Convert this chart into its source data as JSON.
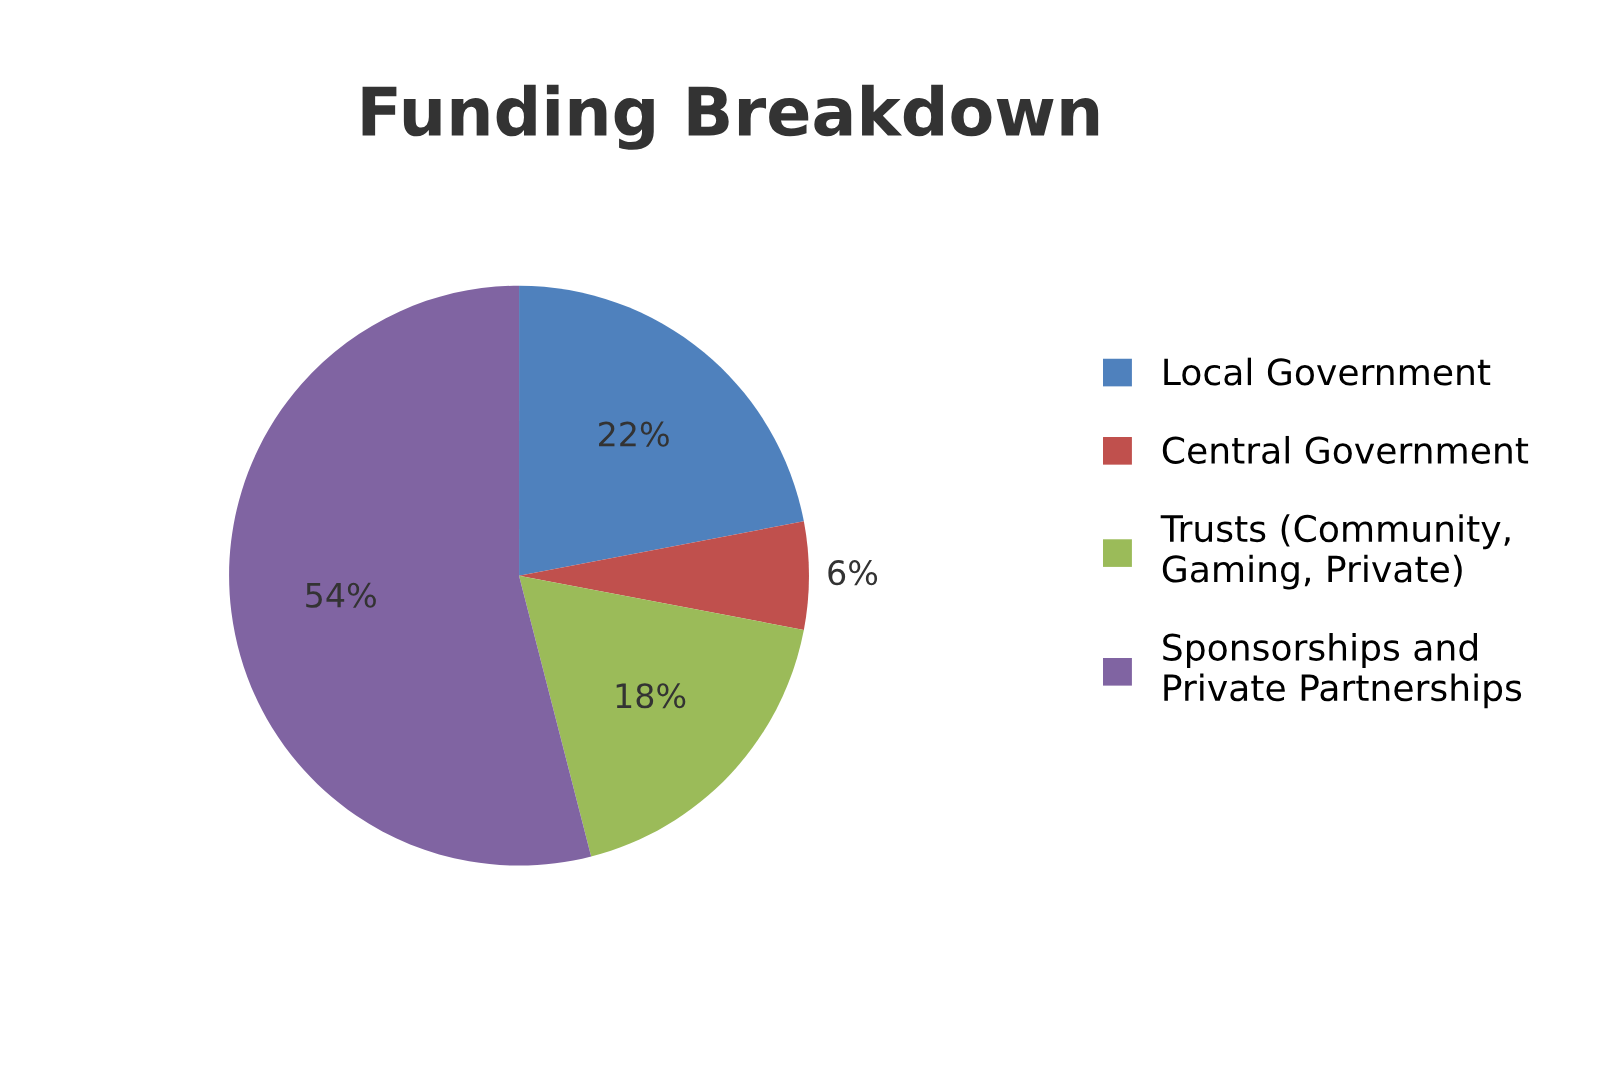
{
  "chart_data": {
    "type": "pie",
    "title": "Funding Breakdown",
    "categories": [
      "Local Government",
      "Central Government",
      "Trusts (Community,\nGaming, Private)",
      "Sponsorships and\nPrivate Partnerships"
    ],
    "values": [
      22,
      6,
      18,
      54
    ],
    "value_labels": [
      "22%",
      "6%",
      "18%",
      "54%"
    ],
    "colors": [
      "#4f81bd",
      "#c0504d",
      "#9bbb59",
      "#8064a2"
    ],
    "legend": "right"
  }
}
